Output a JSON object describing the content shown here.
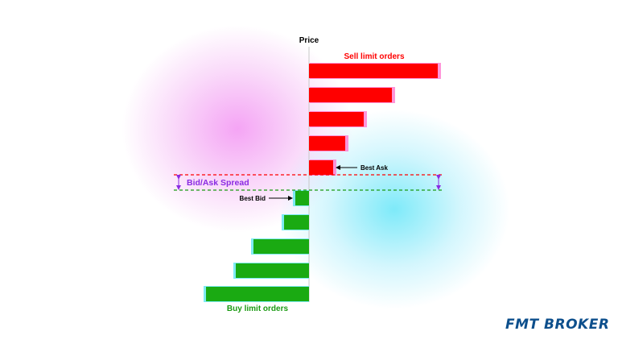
{
  "diagram": {
    "price_label": "Price",
    "sell_label": "Sell limit orders",
    "buy_label": "Buy limit orders",
    "best_ask_label": "Best Ask",
    "best_bid_label": "Best Bid",
    "spread_label": "Bid/Ask Spread",
    "sell_orders": [
      160,
      103,
      68,
      45,
      30
    ],
    "buy_orders": [
      17,
      31,
      69,
      91,
      128
    ],
    "colors": {
      "sell": "#ff0000",
      "buy": "#1aaa12",
      "ask_line": "#ff0000",
      "bid_line": "#1a9a12",
      "spread_text": "#8a2be2",
      "sell_text": "#ff0000",
      "buy_text": "#1a9a12",
      "axis": "#c8c8c8"
    }
  },
  "logo": {
    "text": "FMT BROKER",
    "color": "#0d4f8c"
  }
}
